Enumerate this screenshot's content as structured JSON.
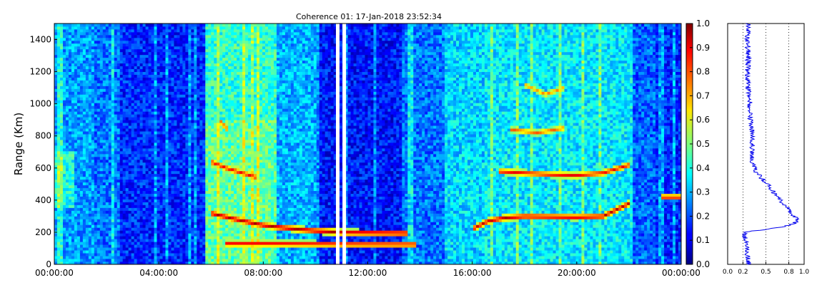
{
  "chart_data": [
    {
      "type": "heatmap",
      "title": "Coherence 01: 17-Jan-2018 23:52:34",
      "xlabel": "",
      "ylabel": "Range (Km)",
      "xlim": [
        0,
        24
      ],
      "ylim": [
        0,
        1500
      ],
      "x_ticks": [
        "00:00:00",
        "04:00:00",
        "08:00:00",
        "12:00:00",
        "16:00:00",
        "20:00:00",
        "00:00:00"
      ],
      "x_tick_hours": [
        0,
        4,
        8,
        12,
        16,
        20,
        24
      ],
      "y_ticks": [
        0,
        200,
        400,
        600,
        800,
        1000,
        1200,
        1400
      ],
      "colormap": "jet",
      "value_range": [
        0,
        1
      ],
      "grid": false,
      "missing_data_hours": [
        10.85,
        11.1
      ],
      "features": [
        {
          "hours": [
            6.0,
            7.0,
            8.0,
            9.0,
            10.0,
            11.0,
            12.0,
            13.5
          ],
          "range_km": [
            320,
            280,
            245,
            225,
            210,
            200,
            198,
            195
          ],
          "value": 0.97
        },
        {
          "hours": [
            6.5,
            8.0,
            10.0,
            12.0,
            13.8
          ],
          "range_km": [
            130,
            130,
            128,
            126,
            125
          ],
          "value": 0.92
        },
        {
          "hours": [
            6.0,
            6.6,
            7.2,
            7.8
          ],
          "range_km": [
            640,
            600,
            570,
            540
          ],
          "value": 0.9
        },
        {
          "hours": [
            6.3,
            6.7
          ],
          "range_km": [
            900,
            830
          ],
          "value": 0.85
        },
        {
          "hours": [
            16.0,
            16.6,
            17.2,
            18.0,
            20.0,
            21.0,
            22.0
          ],
          "range_km": [
            220,
            270,
            290,
            300,
            295,
            300,
            380
          ],
          "value": 0.95
        },
        {
          "hours": [
            17.0,
            18.0,
            19.0,
            20.0,
            21.0,
            22.0
          ],
          "range_km": [
            580,
            570,
            560,
            555,
            570,
            620
          ],
          "value": 0.9
        },
        {
          "hours": [
            17.5,
            18.5,
            19.5
          ],
          "range_km": [
            840,
            820,
            850
          ],
          "value": 0.8
        },
        {
          "hours": [
            18.0,
            18.8,
            19.5
          ],
          "range_km": [
            1120,
            1060,
            1100
          ],
          "value": 0.75
        },
        {
          "hours": [
            23.2,
            24.0
          ],
          "range_km": [
            420,
            420
          ],
          "value": 0.9
        }
      ]
    },
    {
      "type": "colorbar",
      "ticks": [
        0.0,
        0.1,
        0.2,
        0.3,
        0.4,
        0.5,
        0.6,
        0.7,
        0.8,
        0.9,
        1.0
      ],
      "tick_labels": [
        "0.0",
        "0.1",
        "0.2",
        "0.3",
        "0.4",
        "0.5",
        "0.6",
        "0.7",
        "0.8",
        "0.9",
        "1.0"
      ]
    },
    {
      "type": "line",
      "description_axes": "mean coherence profile vs range",
      "xlim": [
        0,
        1
      ],
      "ylim": [
        0,
        1500
      ],
      "x_ticks": [
        "0.0",
        "0.2",
        "0.5",
        "0.8",
        "1.0"
      ],
      "x_tick_values": [
        0.0,
        0.2,
        0.5,
        0.8,
        1.0
      ],
      "gridlines_x": [
        0.2,
        0.5,
        0.8
      ],
      "series": [
        {
          "color": "#0000ee",
          "range_km": [
            0,
            50,
            100,
            150,
            180,
            200,
            215,
            230,
            250,
            270,
            290,
            310,
            330,
            350,
            380,
            420,
            460,
            500,
            540,
            580,
            620,
            660,
            700,
            800,
            900,
            1000,
            1100,
            1200,
            1300,
            1400,
            1500
          ],
          "values": [
            0.28,
            0.26,
            0.25,
            0.24,
            0.22,
            0.23,
            0.45,
            0.7,
            0.85,
            0.9,
            0.9,
            0.85,
            0.82,
            0.8,
            0.73,
            0.64,
            0.58,
            0.52,
            0.44,
            0.36,
            0.33,
            0.31,
            0.32,
            0.32,
            0.3,
            0.29,
            0.27,
            0.26,
            0.27,
            0.26,
            0.27
          ]
        }
      ]
    }
  ]
}
